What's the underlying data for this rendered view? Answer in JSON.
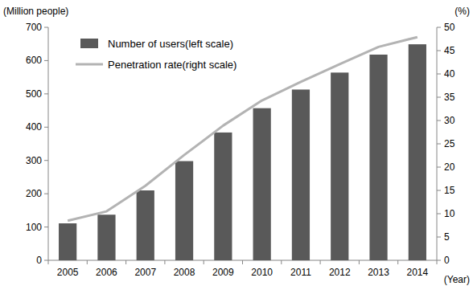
{
  "chart_data": {
    "type": "bar",
    "y_label": "(Million people)",
    "y2_label": "(%)",
    "x_label": "(Year)",
    "categories": [
      "2005",
      "2006",
      "2007",
      "2008",
      "2009",
      "2010",
      "2011",
      "2012",
      "2013",
      "2014"
    ],
    "series": [
      {
        "name": "Number of users(left scale)",
        "type": "bar",
        "color": "#595959",
        "values": [
          111,
          137,
          210,
          298,
          384,
          457,
          513,
          564,
          618,
          649
        ]
      },
      {
        "name": "Penetration rate(right scale)",
        "type": "line",
        "axis": "y2",
        "color": "#b3b3b3",
        "values": [
          8.5,
          10.5,
          16.0,
          22.6,
          28.9,
          34.3,
          38.3,
          42.1,
          45.8,
          47.9
        ]
      }
    ],
    "ylim": [
      0,
      700
    ],
    "yticks": [
      0,
      100,
      200,
      300,
      400,
      500,
      600,
      700
    ],
    "y2lim": [
      0,
      50
    ],
    "y2ticks": [
      0,
      5,
      10,
      15,
      20,
      25,
      30,
      35,
      40,
      45,
      50
    ],
    "legend": "upper left",
    "grid": false
  }
}
